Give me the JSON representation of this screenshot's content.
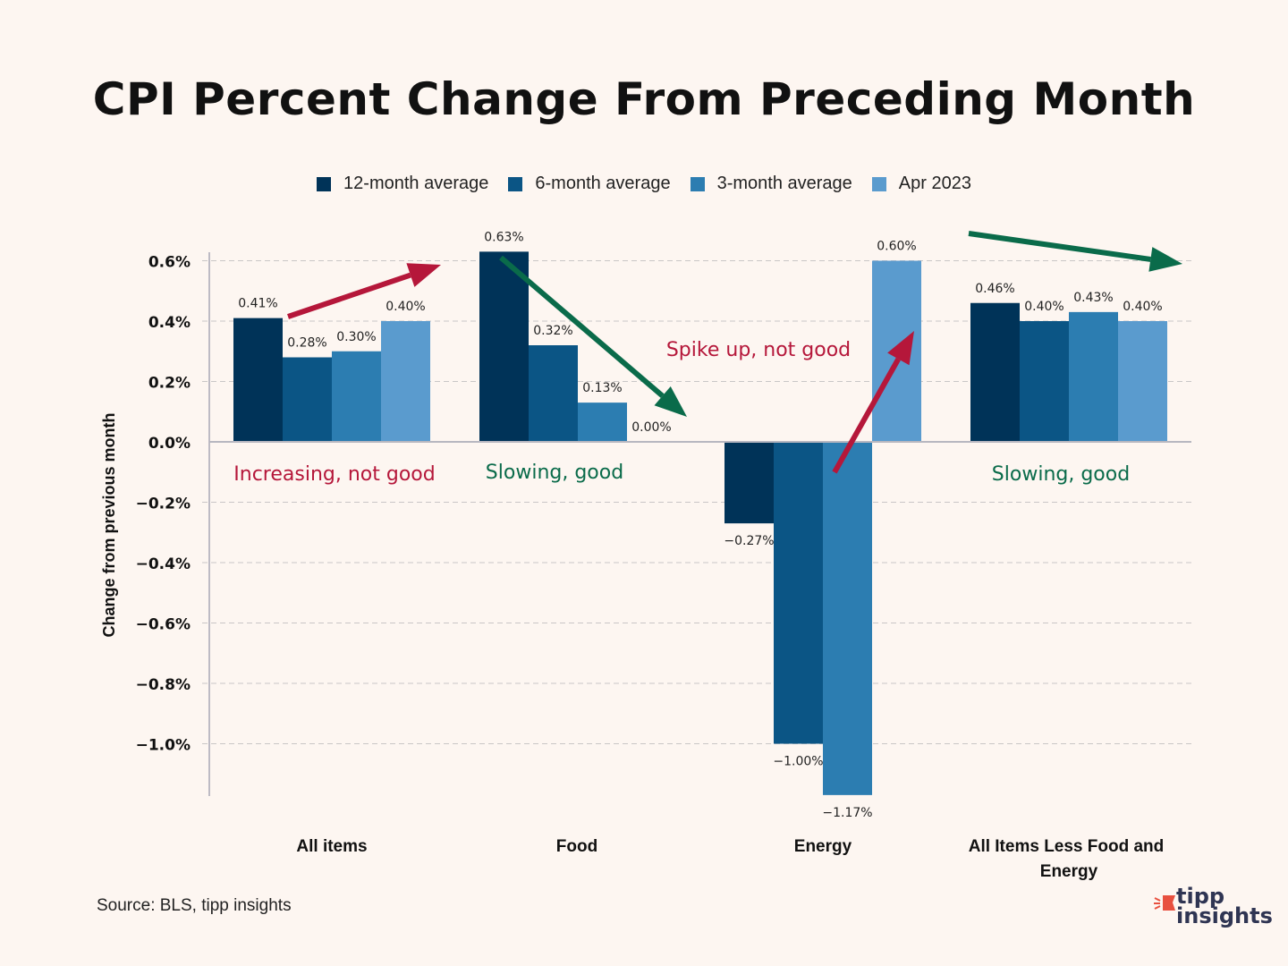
{
  "chart_data": {
    "type": "bar",
    "title": "CPI Percent Change From Preceding Month",
    "xlabel": "",
    "ylabel": "Change from previous month",
    "ylim": [
      -1.17,
      0.63
    ],
    "yticks": [
      0.6,
      0.4,
      0.2,
      0.0,
      -0.2,
      -0.4,
      -0.6,
      -0.8,
      -1.0
    ],
    "ytick_labels": [
      "0.6%",
      "0.4%",
      "0.2%",
      "0.0%",
      "−0.2%",
      "−0.4%",
      "−0.6%",
      "−0.8%",
      "−1.0%"
    ],
    "grid": true,
    "legend_position": "top-center",
    "categories": [
      "All items",
      "Food",
      "Energy",
      "All Items Less Food and Energy"
    ],
    "series": [
      {
        "name": "12-month average",
        "color": "#003358",
        "values": [
          0.41,
          0.63,
          -0.27,
          0.46
        ],
        "labels": [
          "0.41%",
          "0.63%",
          "−0.27%",
          "0.46%"
        ]
      },
      {
        "name": "6-month average",
        "color": "#0b5585",
        "values": [
          0.28,
          0.32,
          -1.0,
          0.4
        ],
        "labels": [
          "0.28%",
          "0.32%",
          "−1.00%",
          "0.40%"
        ]
      },
      {
        "name": "3-month average",
        "color": "#2c7db1",
        "values": [
          0.3,
          0.13,
          -1.17,
          0.43
        ],
        "labels": [
          "0.30%",
          "0.13%",
          "−1.17%",
          "0.43%"
        ]
      },
      {
        "name": "Apr 2023",
        "color": "#5a9bce",
        "values": [
          0.4,
          0.0,
          0.6,
          0.4
        ],
        "labels": [
          "0.40%",
          "0.00%",
          "0.60%",
          "0.40%"
        ]
      }
    ],
    "annotations": [
      {
        "text": "Increasing, not good",
        "color": "#b5173a",
        "category": "All items"
      },
      {
        "text": "Slowing, good",
        "color": "#0a6b4a",
        "category": "Food"
      },
      {
        "text": "Spike up, not good",
        "color": "#b5173a",
        "category": "Energy"
      },
      {
        "text": "Slowing, good",
        "color": "#0a6b4a",
        "category": "All Items Less Food and Energy"
      }
    ],
    "arrows": [
      {
        "direction": "up",
        "color": "#b5173a",
        "category": "All items"
      },
      {
        "direction": "down",
        "color": "#0a6b4a",
        "category": "Food"
      },
      {
        "direction": "up",
        "color": "#b5173a",
        "category": "Energy"
      },
      {
        "direction": "down",
        "color": "#0a6b4a",
        "category": "All Items Less Food and Energy"
      }
    ]
  },
  "source": "Source: BLS, tipp insights",
  "logo": {
    "line1": "tipp",
    "line2": "insights",
    "accent": "#e8503f"
  }
}
